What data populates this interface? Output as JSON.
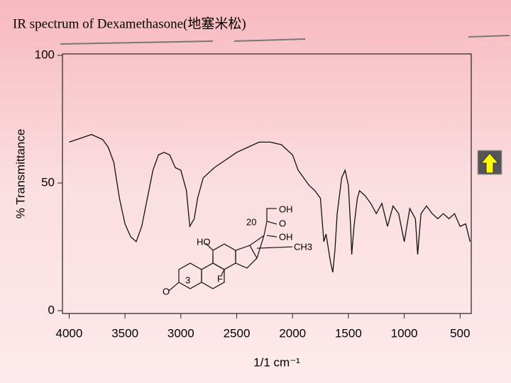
{
  "title": "IR spectrum of Dexamethasone(地塞米松)",
  "chart_data": {
    "type": "line",
    "x_label": "1/1 cm⁻¹",
    "y_label": "% Transmittance",
    "color": "#111111",
    "x": [
      4000,
      3900,
      3800,
      3700,
      3650,
      3600,
      3550,
      3500,
      3450,
      3400,
      3350,
      3300,
      3250,
      3200,
      3150,
      3100,
      3050,
      3000,
      2950,
      2920,
      2880,
      2850,
      2800,
      2700,
      2600,
      2500,
      2400,
      2300,
      2200,
      2100,
      2050,
      2000,
      1950,
      1900,
      1850,
      1800,
      1750,
      1720,
      1700,
      1660,
      1640,
      1620,
      1600,
      1560,
      1530,
      1500,
      1480,
      1470,
      1450,
      1420,
      1400,
      1350,
      1300,
      1250,
      1200,
      1150,
      1100,
      1050,
      1000,
      950,
      900,
      880,
      850,
      800,
      750,
      700,
      650,
      600,
      550,
      500,
      450,
      410
    ],
    "values": [
      66,
      67.5,
      69,
      67,
      64,
      58,
      44,
      34,
      29,
      27,
      33,
      44,
      55,
      61,
      62,
      61,
      56,
      55,
      47,
      33,
      36,
      44,
      52,
      56,
      59,
      62,
      64,
      66,
      66,
      65,
      63,
      61,
      55,
      52,
      49,
      47,
      44,
      27,
      30,
      19,
      15,
      24,
      38,
      52,
      55,
      49,
      33,
      22,
      33,
      44,
      47,
      45,
      42,
      38,
      42,
      33,
      41,
      38,
      27,
      40,
      36,
      22,
      38,
      41,
      38,
      36,
      38,
      36,
      38,
      33,
      34,
      27
    ],
    "xlim": [
      4060,
      400
    ],
    "ylim": [
      0,
      100
    ],
    "xticks": [
      4000,
      3500,
      3000,
      2500,
      2000,
      1500,
      1000,
      500
    ],
    "yticks": [
      0,
      50,
      100
    ],
    "structure": {
      "labels": [
        "OH",
        "O",
        "OH",
        "CH3",
        "HO",
        "20",
        "3",
        "F",
        "O"
      ]
    }
  }
}
